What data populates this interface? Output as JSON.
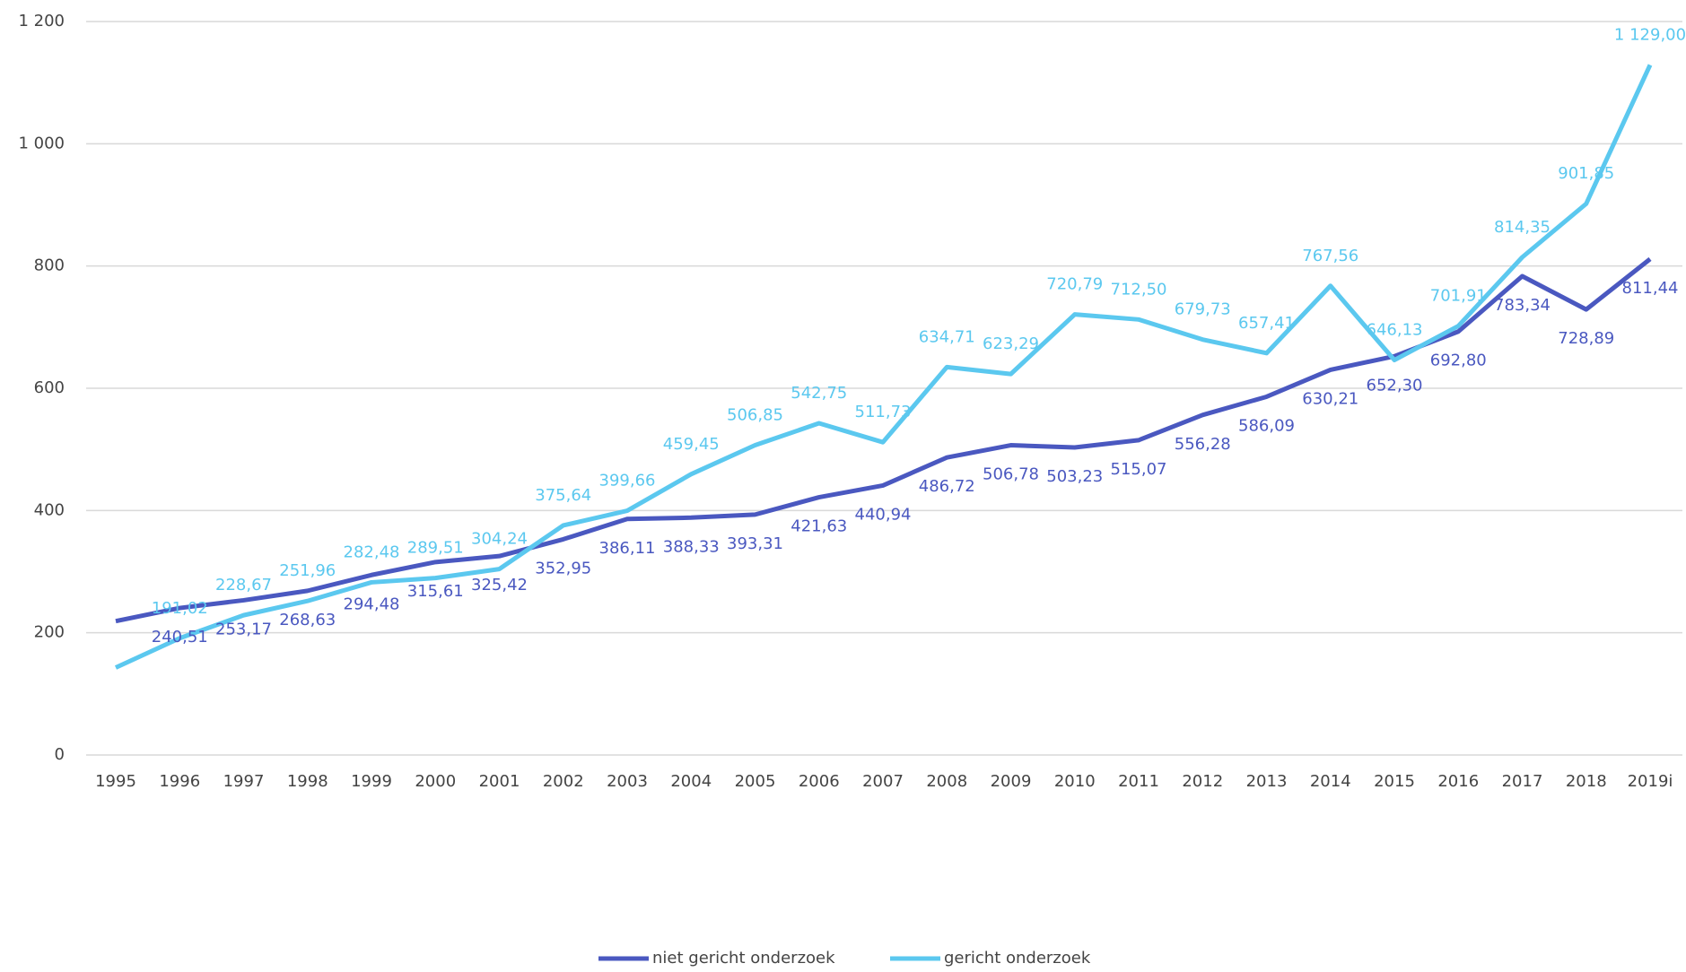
{
  "chart_data": {
    "type": "line",
    "categories": [
      "1995",
      "1996",
      "1997",
      "1998",
      "1999",
      "2000",
      "2001",
      "2002",
      "2003",
      "2004",
      "2005",
      "2006",
      "2007",
      "2008",
      "2009",
      "2010",
      "2011",
      "2012",
      "2013",
      "2014",
      "2015",
      "2016",
      "2017",
      "2018",
      "2019i"
    ],
    "series": [
      {
        "name": "niet gericht onderzoek",
        "color": "#4a58c0",
        "values": [
          219,
          240.51,
          253.17,
          268.63,
          294.48,
          315.61,
          325.42,
          352.95,
          386.11,
          388.33,
          393.31,
          421.63,
          440.94,
          486.72,
          506.78,
          503.23,
          515.07,
          556.28,
          586.09,
          630.21,
          652.3,
          692.8,
          783.34,
          728.89,
          811.44
        ],
        "value_labels": [
          null,
          "240,51",
          "253,17",
          "268,63",
          "294,48",
          "315,61",
          "325,42",
          "352,95",
          "386,11",
          "388,33",
          "393,31",
          "421,63",
          "440,94",
          "486,72",
          "506,78",
          "503,23",
          "515,07",
          "556,28",
          "586,09",
          "630,21",
          "652,30",
          "692,80",
          "783,34",
          "728,89",
          "811,44"
        ]
      },
      {
        "name": "gericht onderzoek",
        "color": "#5bc8ef",
        "values": [
          143,
          191.02,
          228.67,
          251.96,
          282.48,
          289.51,
          304.24,
          375.64,
          399.66,
          459.45,
          506.85,
          542.75,
          511.73,
          634.71,
          623.29,
          720.79,
          712.5,
          679.73,
          657.41,
          767.56,
          646.13,
          701.91,
          814.35,
          901.85,
          1129.0
        ],
        "value_labels": [
          null,
          "191,02",
          "228,67",
          "251,96",
          "282,48",
          "289,51",
          "304,24",
          "375,64",
          "399,66",
          "459,45",
          "506,85",
          "542,75",
          "511,73",
          "634,71",
          "623,29",
          "720,79",
          "712,50",
          "679,73",
          "657,41",
          "767,56",
          "646,13",
          "701,91",
          "814,35",
          "901,85",
          "1 129,00"
        ]
      }
    ],
    "ylim": [
      0,
      1200
    ],
    "yticks": [
      0,
      200,
      400,
      600,
      800,
      {
        "value": 1000,
        "label": "1 000"
      },
      {
        "value": 1200,
        "label": "1 200"
      }
    ],
    "grid": true,
    "legend": "bottom"
  }
}
